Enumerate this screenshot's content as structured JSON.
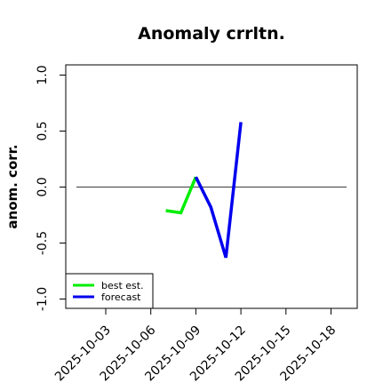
{
  "chart_data": {
    "type": "line",
    "title": "Anomaly crrltn.",
    "xlabel": "",
    "ylabel": "anom. corr.",
    "ylim": [
      -1.0,
      1.0
    ],
    "xlim": [
      "2025-10-01",
      "2025-10-20"
    ],
    "x_tick_labels": [
      "2025-10-03",
      "2025-10-06",
      "2025-10-09",
      "2025-10-12",
      "2025-10-15",
      "2025-10-18"
    ],
    "highlighted_x_tick": "2025-10-09",
    "y_tick_labels": [
      "-1.0",
      "-0.5",
      "0.0",
      "0.5",
      "1.0"
    ],
    "reference_line": 0.0,
    "legend_position": "bottom-left",
    "grid": false,
    "series": [
      {
        "name": "best est.",
        "color": "#00ee00",
        "x": [
          "2025-10-07",
          "2025-10-08",
          "2025-10-09"
        ],
        "values": [
          -0.21,
          -0.23,
          0.09
        ]
      },
      {
        "name": "forecast",
        "color": "#0000ee",
        "x": [
          "2025-10-09",
          "2025-10-10",
          "2025-10-11",
          "2025-10-12"
        ],
        "values": [
          0.09,
          -0.18,
          -0.63,
          0.58
        ]
      }
    ],
    "colors": {
      "highlight_tick": "#228b22",
      "reference_line": "#555555"
    }
  }
}
